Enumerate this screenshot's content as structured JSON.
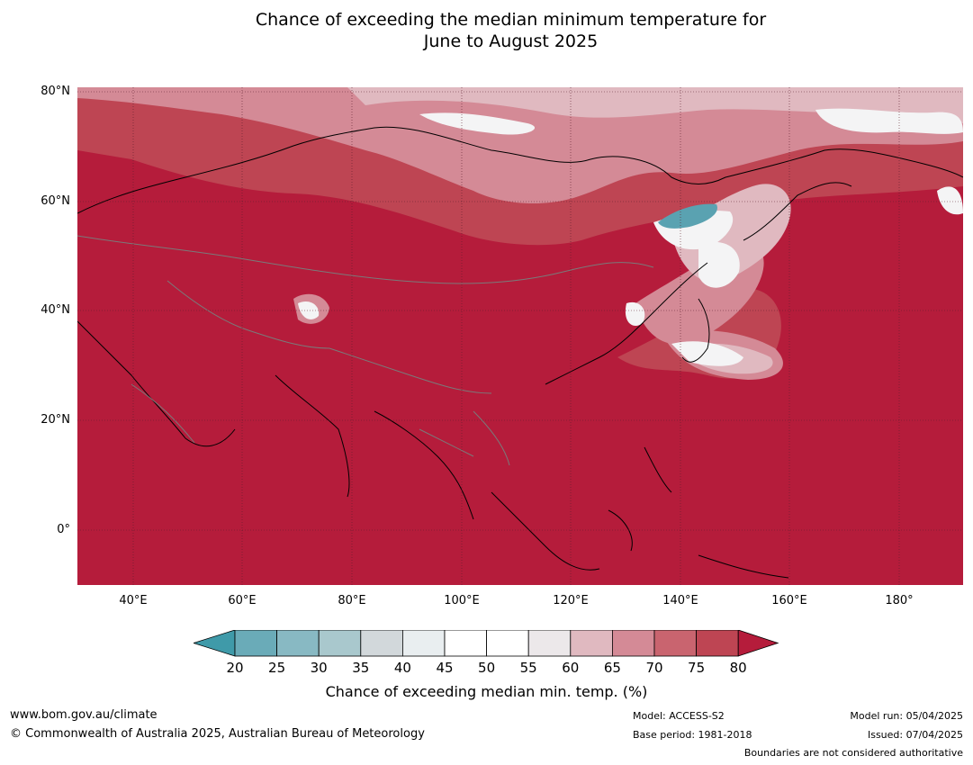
{
  "title": {
    "line1": "Chance of exceeding the median minimum temperature for",
    "line2": "June to August 2025"
  },
  "map": {
    "lat_labels": [
      "80°N",
      "60°N",
      "40°N",
      "20°N",
      "0°"
    ],
    "lon_labels": [
      "40°E",
      "60°E",
      "80°E",
      "100°E",
      "120°E",
      "140°E",
      "160°E",
      "180°"
    ]
  },
  "colorbar": {
    "title": "Chance of exceeding median min. temp. (%)",
    "ticks": [
      "20",
      "25",
      "30",
      "35",
      "40",
      "45",
      "50",
      "55",
      "60",
      "65",
      "70",
      "75",
      "80"
    ],
    "colors": {
      "below20": "#3f9aa9",
      "bins": [
        "#6aabb8",
        "#88b9c3",
        "#a9c8cd",
        "#d2d8db",
        "#e9eef0",
        "#ffffff",
        "#ffffff",
        "#ece8ea",
        "#e0b9c0",
        "#d48a96",
        "#c9646f",
        "#be4553"
      ],
      "above80": "#b51c3b"
    }
  },
  "footer": {
    "website": "www.bom.gov.au/climate",
    "copyright": "© Commonwealth of Australia 2025, Australian Bureau of Meteorology",
    "model": "Model: ACCESS-S2",
    "base_period": "Base period: 1981-2018",
    "model_run": "Model run: 05/04/2025",
    "issued": "Issued: 07/04/2025",
    "disclaimer": "Boundaries are not considered authoritative"
  }
}
